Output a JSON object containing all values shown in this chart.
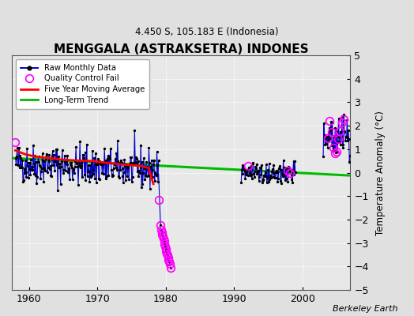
{
  "title": "MENGGALA (ASTRAKSETRA) INDONES",
  "subtitle": "4.450 S, 105.183 E (Indonesia)",
  "ylabel": "Temperature Anomaly (°C)",
  "ylim": [
    -5,
    5
  ],
  "xlim": [
    1957.5,
    2007
  ],
  "yticks": [
    -5,
    -4,
    -3,
    -2,
    -1,
    0,
    1,
    2,
    3,
    4,
    5
  ],
  "xticks": [
    1960,
    1970,
    1980,
    1990,
    2000
  ],
  "bg_color": "#e0e0e0",
  "plot_bg": "#e8e8e8",
  "colors": {
    "raw_line": "#0000cc",
    "raw_marker": "#000000",
    "qc_fail": "#ff00ff",
    "moving_avg": "#ff0000",
    "trend": "#00bb00"
  },
  "trend_x": [
    1957.5,
    2007.0
  ],
  "trend_y": [
    0.62,
    -0.12
  ],
  "ma_x": [
    1958.0,
    1959.5,
    1961.0,
    1963.0,
    1965.0,
    1967.0,
    1969.0,
    1971.0,
    1973.0,
    1975.0,
    1976.5,
    1977.5,
    1978.2
  ],
  "ma_y": [
    0.95,
    0.78,
    0.68,
    0.62,
    0.55,
    0.52,
    0.5,
    0.43,
    0.37,
    0.32,
    0.28,
    0.2,
    -0.48
  ],
  "seg1_seed": 42,
  "seg1_start": 1958,
  "seg1_end": 1978,
  "seg1_mean": 0.42,
  "seg1_std": 0.42,
  "seg1_trend": -0.013,
  "seg2_seed": 100,
  "seg2_start": 1991,
  "seg2_end": 1998,
  "seg2_mean": 0.02,
  "seg2_std": 0.25,
  "seg2_trend": 0.0,
  "seg3_seed": 200,
  "seg3_start": 2003,
  "seg3_end": 2006,
  "seg3_mean": 1.3,
  "seg3_std": 0.42,
  "seg3_trend": 0.06,
  "qc_cluster_x": [
    1979.25,
    1979.33,
    1979.42,
    1979.5,
    1979.58,
    1979.67,
    1979.75,
    1979.83,
    1979.92,
    1980.0,
    1980.08,
    1980.17,
    1980.25,
    1980.33,
    1980.42,
    1980.5,
    1980.58,
    1980.67
  ],
  "qc_cluster_y": [
    -2.25,
    -2.45,
    -2.55,
    -2.65,
    -2.72,
    -2.8,
    -2.9,
    -3.05,
    -3.15,
    -3.25,
    -3.35,
    -3.45,
    -3.52,
    -3.62,
    -3.72,
    -3.8,
    -3.9,
    -4.05
  ],
  "qc_lone_x": [
    1957.92,
    1979.0,
    1992.1,
    1997.8,
    1998.2,
    2003.75,
    2004.0,
    2004.25,
    2004.5,
    2004.75,
    2005.0,
    2005.25,
    2005.5,
    2005.75,
    2006.0
  ],
  "qc_lone_y": [
    1.3,
    -1.15,
    0.28,
    0.08,
    0.0,
    1.48,
    2.2,
    1.75,
    1.05,
    0.82,
    0.9,
    1.42,
    1.78,
    2.15,
    2.28
  ],
  "conn_top_x": 1978.96,
  "conn_top_y": -0.05,
  "conn_bot_x": 1979.25,
  "conn_bot_y": -2.25
}
